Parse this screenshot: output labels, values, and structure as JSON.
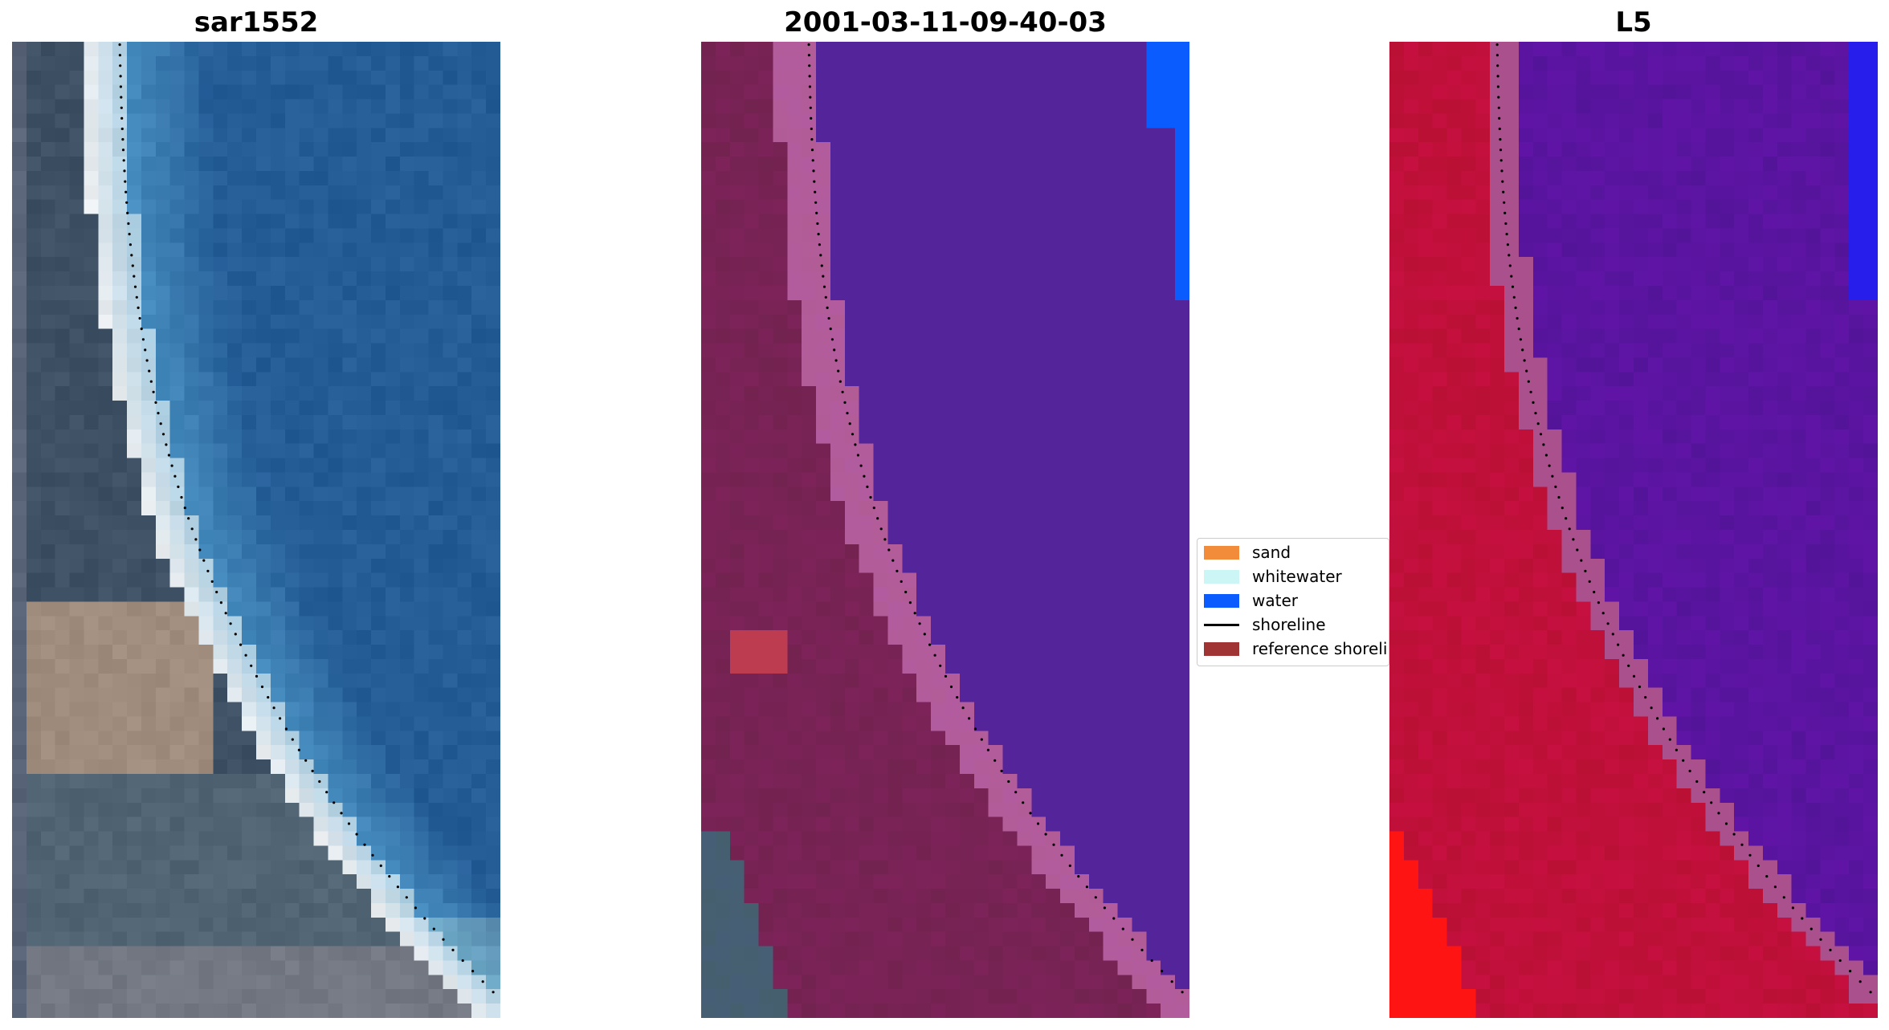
{
  "panels": [
    {
      "title": "sar1552",
      "palette": "rgb"
    },
    {
      "title": "2001-03-11-09-40-03",
      "palette": "classified"
    },
    {
      "title": "L5",
      "palette": "mndwi"
    }
  ],
  "legend": {
    "items": [
      {
        "label": "sand",
        "color": "#f28c3b",
        "kind": "patch"
      },
      {
        "label": "whitewater",
        "color": "#ccf5f5",
        "kind": "patch"
      },
      {
        "label": "water",
        "color": "#0a5cff",
        "kind": "patch"
      },
      {
        "label": "shoreline",
        "color": "#000000",
        "kind": "line"
      },
      {
        "label": "reference shoreli",
        "color": "#a03434",
        "kind": "patch"
      }
    ]
  },
  "colors": {
    "shoreline_dots": "#000000",
    "sea_blue": "#2e7fb0",
    "classified_water_body": "#53249a",
    "classified_land": "#7a1f55",
    "index_land": "#c0103a",
    "index_water": "#5a12a0"
  }
}
